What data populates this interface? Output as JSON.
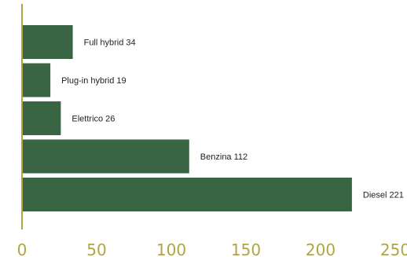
{
  "chart_data": {
    "type": "bar",
    "orientation": "horizontal",
    "categories": [
      "Full hybrid",
      "Plug-in hybrid",
      "Elettrico",
      "Benzina",
      "Diesel"
    ],
    "values": [
      34,
      19,
      26,
      112,
      221
    ],
    "labels": [
      "Full hybrid 34",
      "Plug-in hybrid 19",
      "Elettrico 26",
      "Benzina 112",
      "Diesel 221"
    ],
    "title": "",
    "xlabel": "",
    "ylabel": "",
    "xlim": [
      0,
      250
    ],
    "xticks": [
      0,
      50,
      100,
      150,
      200,
      250
    ],
    "xtick_labels": [
      "0",
      "50",
      "100",
      "150",
      "200",
      "250"
    ],
    "grid": false,
    "legend": "none",
    "colors": {
      "bar": "#3a6545",
      "axis": "#b2a53f",
      "tick_text": "#b2a53f",
      "label_text": "#222222"
    }
  }
}
